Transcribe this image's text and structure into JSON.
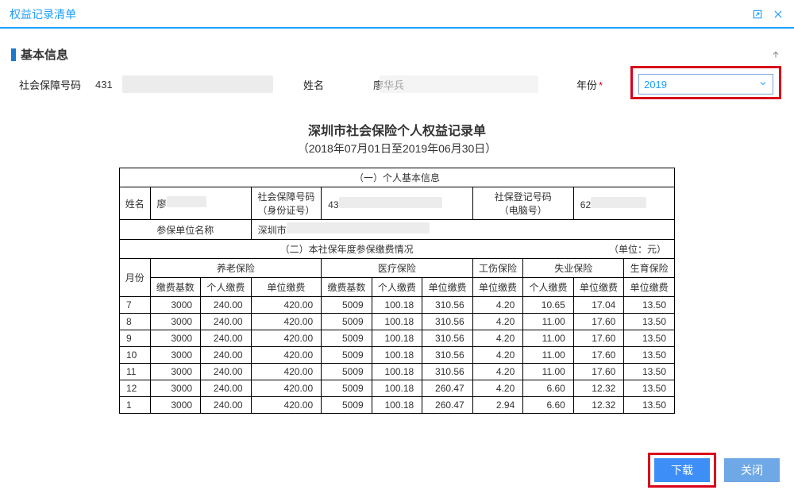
{
  "colors": {
    "accent": "#1e9fff",
    "marker": "#1e78c8",
    "danger": "#d9001b",
    "btn_primary": "#3d8ef7",
    "btn_secondary": "#6ea8e6",
    "redact": "#ececec",
    "border": "#000000"
  },
  "header": {
    "title": "权益记录清单"
  },
  "basic": {
    "section_label": "基本信息",
    "ssn_label": "社会保障号码",
    "ssn_prefix": "431",
    "name_label": "姓名",
    "name_value": "廖华兵",
    "year_label": "年份",
    "year_value": "2019"
  },
  "document": {
    "title": "深圳市社会保险个人权益记录单",
    "subtitle": "（2018年07月01日至2019年06月30日）",
    "section1_label": "（一）个人基本信息",
    "row1": {
      "name_label": "姓名",
      "name_value_prefix": "廖",
      "ssn_label_line1": "社会保障号码",
      "ssn_label_line2": "（身份证号）",
      "ssn_value_prefix": "43",
      "reg_label_line1": "社保登记号码",
      "reg_label_line2": "（电脑号）",
      "reg_value_prefix": "62"
    },
    "row2": {
      "org_label": "参保单位名称",
      "org_value_prefix": "深圳市"
    },
    "section2_label": "（二）本社保年度参保缴费情况",
    "unit_label": "（单位：元）",
    "groups": {
      "month": "月份",
      "pension": "养老保险",
      "medical": "医疗保险",
      "injury": "工伤保险",
      "unemployment": "失业保险",
      "maternity": "生育保险"
    },
    "cols": {
      "base": "缴费基数",
      "personal": "个人缴费",
      "unit": "单位缴费"
    },
    "rows": [
      {
        "m": "7",
        "pb": "3000",
        "pp": "240.00",
        "pu": "420.00",
        "mb": "5009",
        "mp": "100.18",
        "mu": "310.56",
        "iu": "4.20",
        "up": "10.65",
        "uu": "17.04",
        "matu": "13.50"
      },
      {
        "m": "8",
        "pb": "3000",
        "pp": "240.00",
        "pu": "420.00",
        "mb": "5009",
        "mp": "100.18",
        "mu": "310.56",
        "iu": "4.20",
        "up": "11.00",
        "uu": "17.60",
        "matu": "13.50"
      },
      {
        "m": "9",
        "pb": "3000",
        "pp": "240.00",
        "pu": "420.00",
        "mb": "5009",
        "mp": "100.18",
        "mu": "310.56",
        "iu": "4.20",
        "up": "11.00",
        "uu": "17.60",
        "matu": "13.50"
      },
      {
        "m": "10",
        "pb": "3000",
        "pp": "240.00",
        "pu": "420.00",
        "mb": "5009",
        "mp": "100.18",
        "mu": "310.56",
        "iu": "4.20",
        "up": "11.00",
        "uu": "17.60",
        "matu": "13.50"
      },
      {
        "m": "11",
        "pb": "3000",
        "pp": "240.00",
        "pu": "420.00",
        "mb": "5009",
        "mp": "100.18",
        "mu": "310.56",
        "iu": "4.20",
        "up": "11.00",
        "uu": "17.60",
        "matu": "13.50"
      },
      {
        "m": "12",
        "pb": "3000",
        "pp": "240.00",
        "pu": "420.00",
        "mb": "5009",
        "mp": "100.18",
        "mu": "260.47",
        "iu": "4.20",
        "up": "6.60",
        "uu": "12.32",
        "matu": "13.50"
      },
      {
        "m": "1",
        "pb": "3000",
        "pp": "240.00",
        "pu": "420.00",
        "mb": "5009",
        "mp": "100.18",
        "mu": "260.47",
        "iu": "2.94",
        "up": "6.60",
        "uu": "12.32",
        "matu": "13.50"
      }
    ]
  },
  "footer": {
    "download": "下载",
    "close": "关闭"
  }
}
